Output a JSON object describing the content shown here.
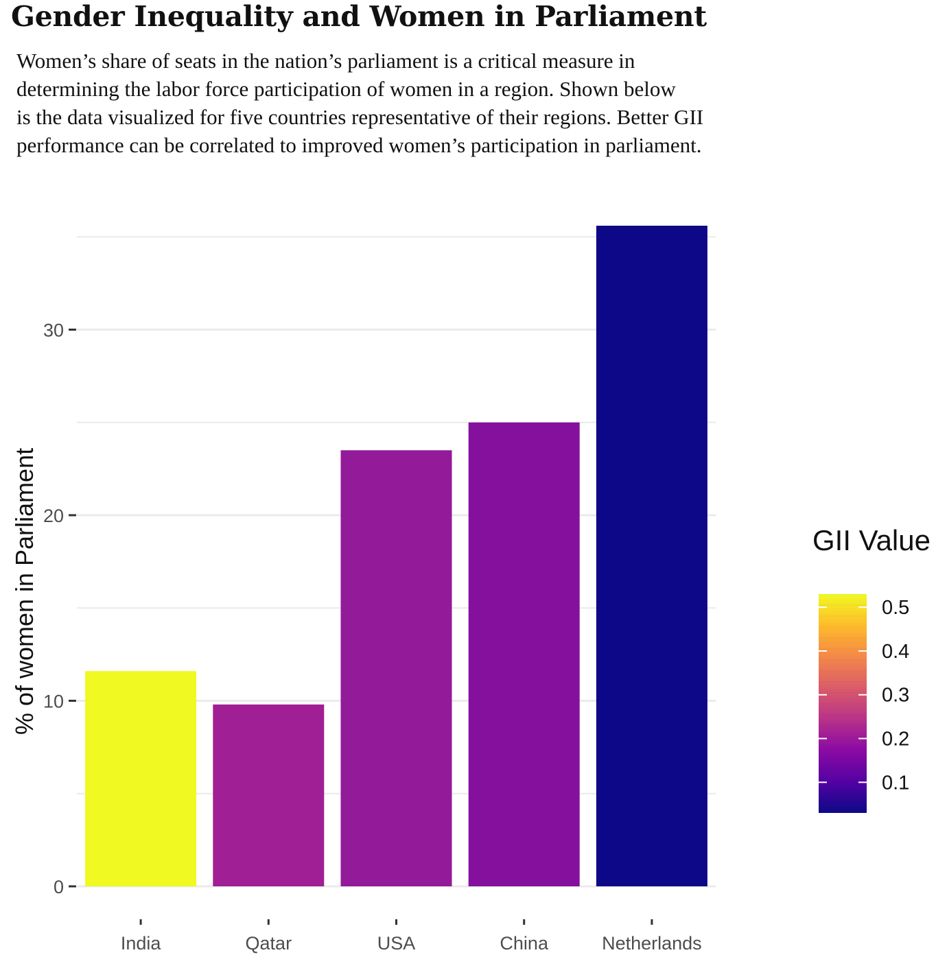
{
  "title": "Gender Inequality and Women in Parliament",
  "subtitle_lines": [
    "Women’s share of seats in the nation’s parliament is a critical measure in",
    "determining the labor force participation of women in a region. Shown below",
    "is the data visualized for five countries representative of their regions. Better GII",
    "performance can be correlated to improved women’s participation in parliament."
  ],
  "chart_data": {
    "type": "bar",
    "categories": [
      "India",
      "Qatar",
      "USA",
      "China",
      "Netherlands"
    ],
    "values": [
      11.6,
      9.8,
      23.5,
      25.0,
      35.6
    ],
    "gii_values": [
      0.52,
      0.24,
      0.21,
      0.19,
      0.04
    ],
    "bar_colors": [
      "#F0F921",
      "#A01F94",
      "#931A98",
      "#86109E",
      "#0D0887"
    ],
    "xlabel": "",
    "ylabel": "% of women in Parliament",
    "ylim": [
      0,
      36
    ],
    "y_ticks": [
      0,
      10,
      20,
      30
    ],
    "grid": true,
    "legend": {
      "title": "GII Value",
      "placement": "right",
      "ticks": [
        "0.5",
        "0.4",
        "0.3",
        "0.2",
        "0.1"
      ],
      "tick_values": [
        0.5,
        0.4,
        0.3,
        0.2,
        0.1
      ],
      "range": [
        0.03,
        0.53
      ],
      "palette": [
        "#0D0887",
        "#5402A3",
        "#8B0AA5",
        "#B93289",
        "#DB5C68",
        "#F48849",
        "#FEBC2A",
        "#F0F921"
      ]
    }
  }
}
